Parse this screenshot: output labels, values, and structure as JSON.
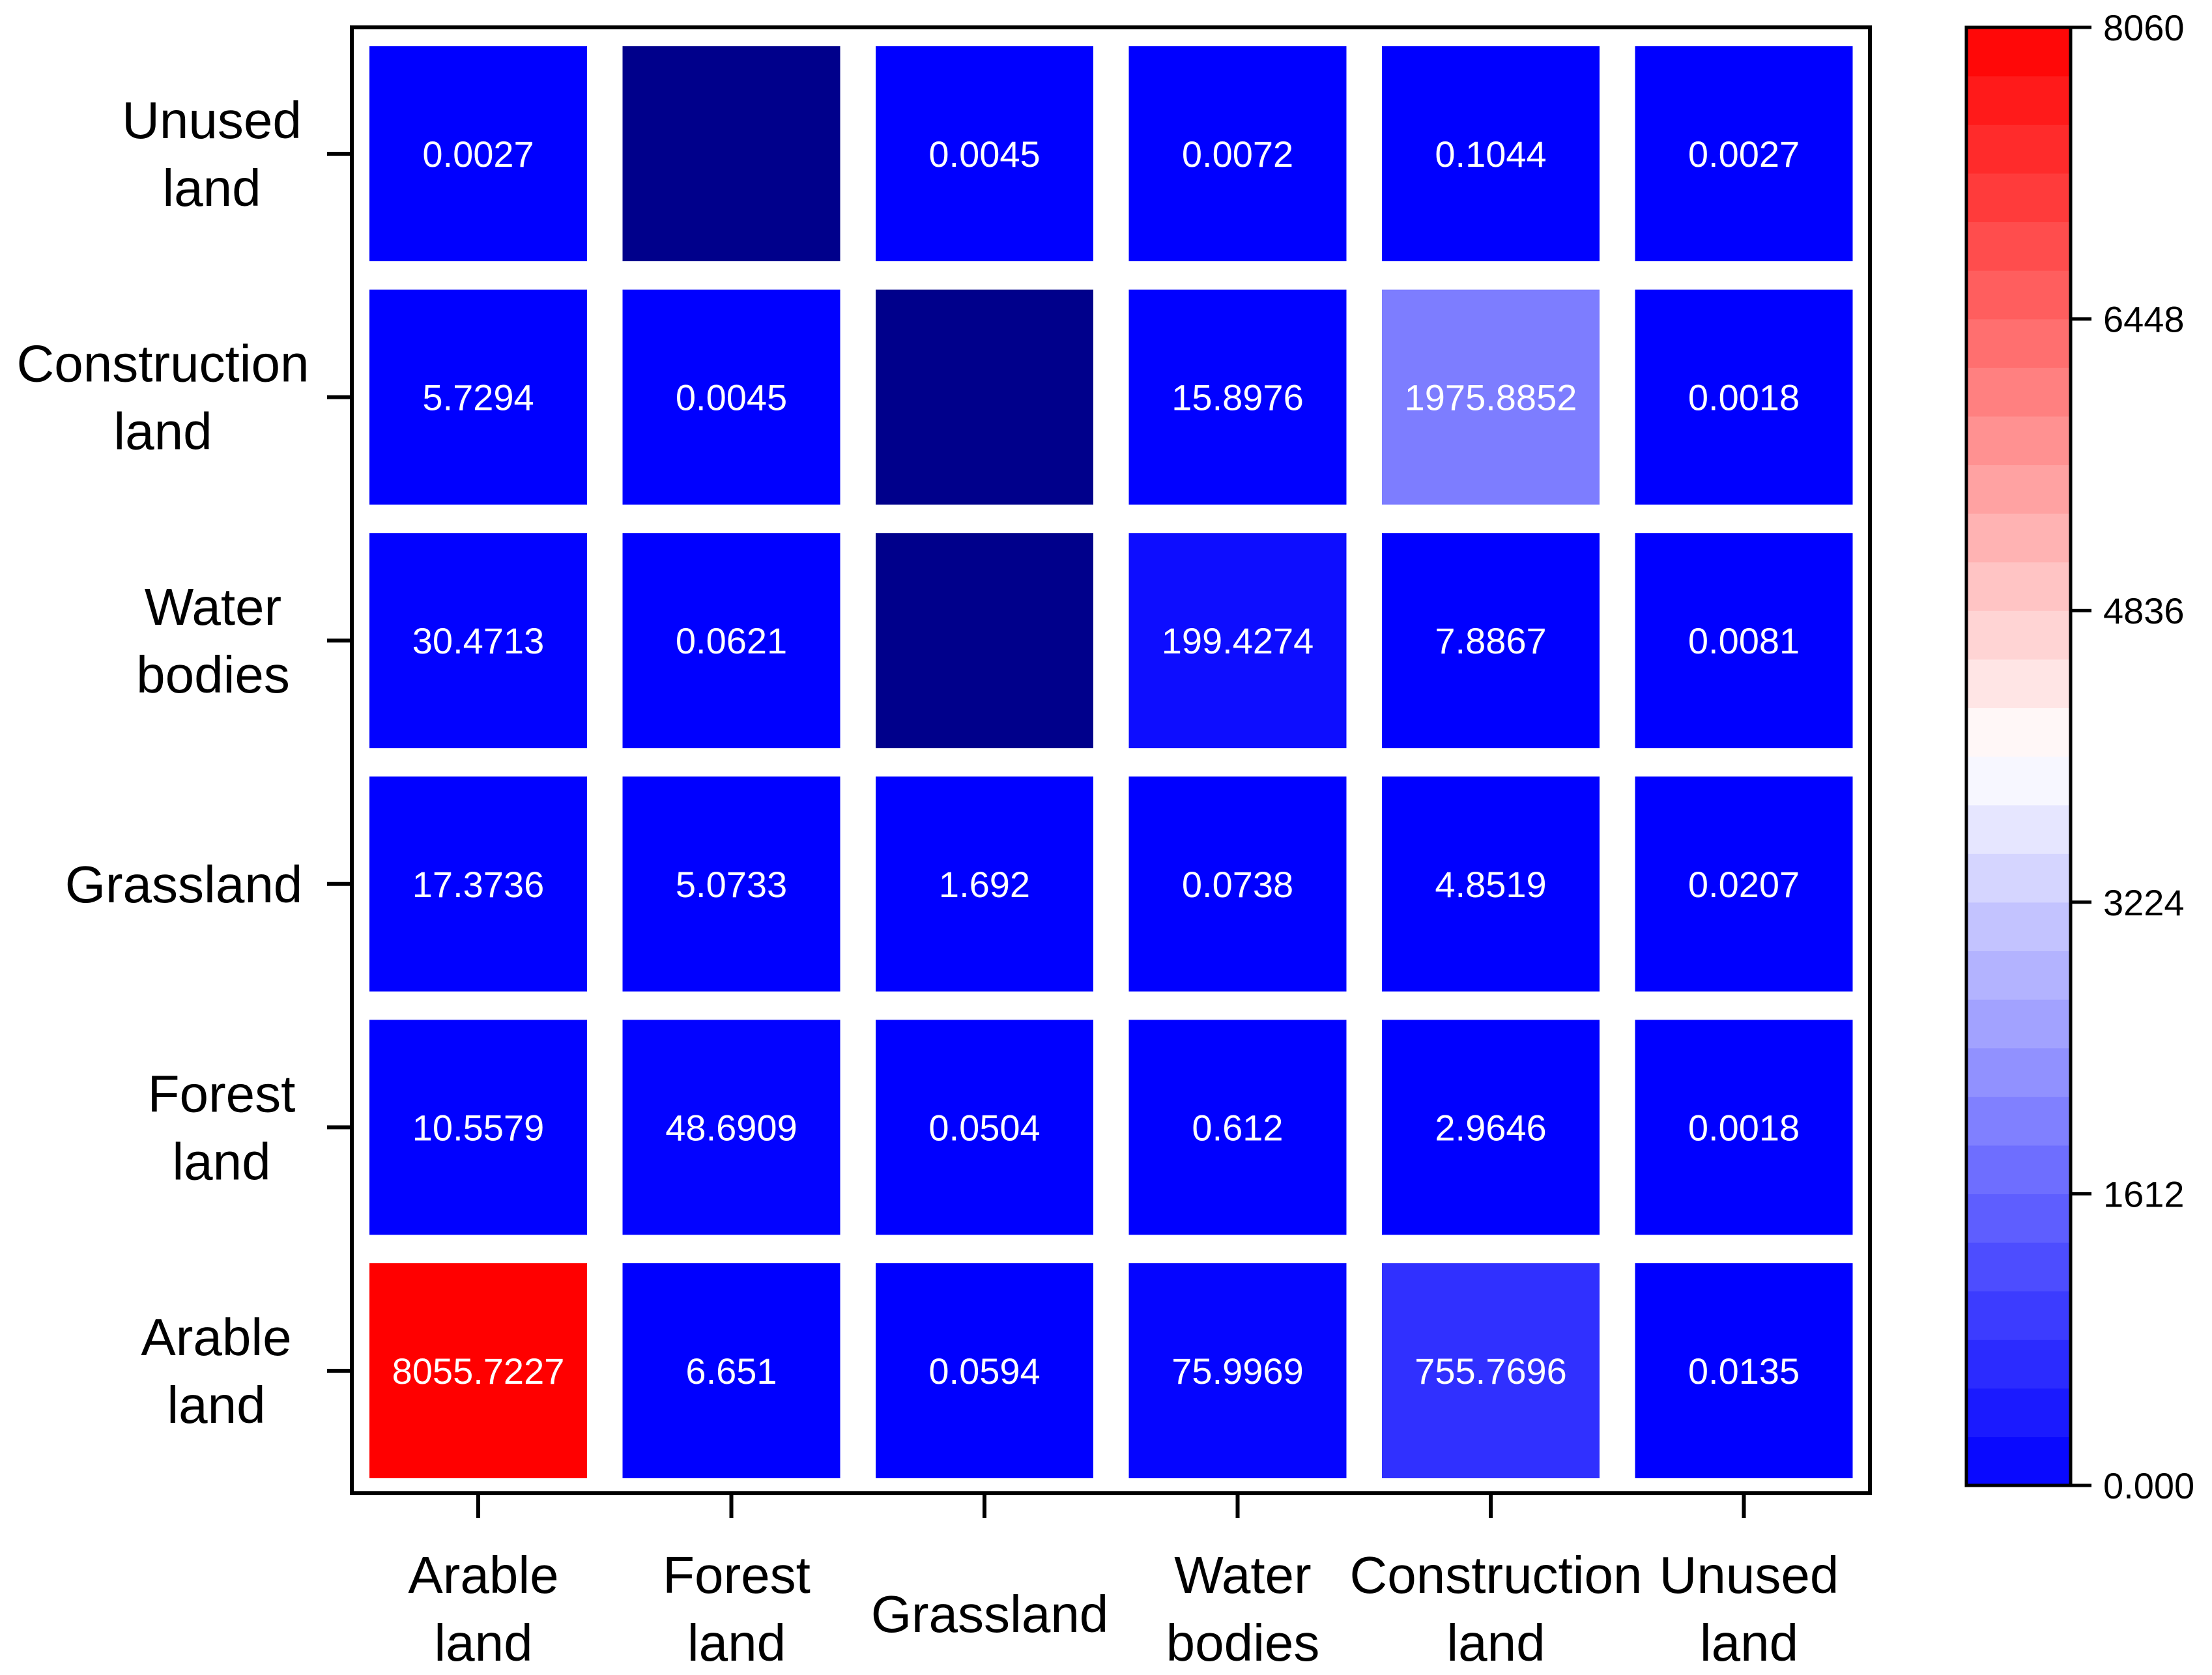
{
  "chart_data": {
    "type": "heatmap",
    "title": "",
    "xlabel": "",
    "ylabel": "",
    "x_categories": [
      [
        "Arable",
        "land"
      ],
      [
        "Forest",
        "land"
      ],
      [
        "Grassland"
      ],
      [
        "Water",
        "bodies"
      ],
      [
        "Construction",
        "land"
      ],
      [
        "Unused",
        "land"
      ]
    ],
    "y_categories": [
      [
        "Arable",
        "land"
      ],
      [
        "Forest",
        "land"
      ],
      [
        "Grassland"
      ],
      [
        "Water",
        "bodies"
      ],
      [
        "Construction",
        "land"
      ],
      [
        "Unused",
        "land"
      ]
    ],
    "y_order": "bottom-to-top",
    "values": [
      [
        8055.7227,
        6.651,
        0.0594,
        75.9969,
        755.7696,
        0.0135
      ],
      [
        10.5579,
        48.6909,
        0.0504,
        0.612,
        2.9646,
        0.0018
      ],
      [
        17.3736,
        5.0733,
        1.692,
        0.0738,
        4.8519,
        0.0207
      ],
      [
        30.4713,
        0.0621,
        null,
        199.4274,
        7.8867,
        0.0081
      ],
      [
        5.7294,
        0.0045,
        null,
        15.8976,
        1975.8852,
        0.0018
      ],
      [
        0.0027,
        null,
        0.0045,
        0.0072,
        0.1044,
        0.0027
      ]
    ],
    "value_labels": [
      [
        "8055.7227",
        "6.651",
        "0.0594",
        "75.9969",
        "755.7696",
        "0.0135"
      ],
      [
        "10.5579",
        "48.6909",
        "0.0504",
        "0.612",
        "2.9646",
        "0.0018"
      ],
      [
        "17.3736",
        "5.0733",
        "1.692",
        "0.0738",
        "4.8519",
        "0.0207"
      ],
      [
        "30.4713",
        "0.0621",
        "",
        "199.4274",
        "7.8867",
        "0.0081"
      ],
      [
        "5.7294",
        "0.0045",
        "",
        "15.8976",
        "1975.8852",
        "0.0018"
      ],
      [
        "0.0027",
        "",
        "0.0045",
        "0.0072",
        "0.1044",
        "0.0027"
      ]
    ],
    "colorbar": {
      "min": 0,
      "max": 8060,
      "ticks": [
        0,
        1612,
        3224,
        4836,
        6448,
        8060
      ],
      "tick_labels": [
        "0.000",
        "1612",
        "3224",
        "4836",
        "6448",
        "8060"
      ],
      "low_color": "#0000ff",
      "mid_color": "#ffffff",
      "high_color": "#ff0000",
      "bands": 30,
      "placement": "right"
    },
    "missing_color": "#00008b"
  }
}
